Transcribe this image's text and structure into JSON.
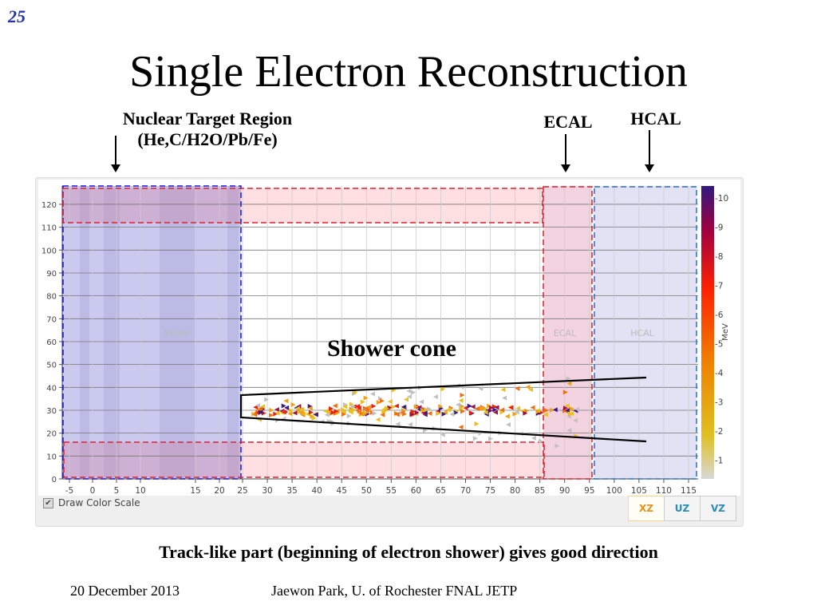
{
  "slide": {
    "page_number": "25",
    "title": "Single Electron Reconstruction",
    "labels": {
      "nuclear_target_line1": "Nuclear Target Region",
      "nuclear_target_line2": "(He,C/H2O/Pb/Fe)",
      "ecal": "ECAL",
      "hcal": "HCAL",
      "shower_cone": "Shower cone"
    },
    "caption": "Track-like part (beginning of electron shower) gives good direction",
    "footer_date": "20 December 2013",
    "footer_author": "Jaewon Park, U. of Rochester  FNAL JETP"
  },
  "display": {
    "x_ticks": [
      "-5",
      "0",
      "5",
      "10",
      "15",
      "20",
      "25",
      "30",
      "35",
      "40",
      "45",
      "50",
      "55",
      "60",
      "65",
      "70",
      "75",
      "80",
      "85",
      "90",
      "95",
      "100",
      "105",
      "110",
      "115"
    ],
    "y_ticks": [
      "0",
      "10",
      "20",
      "30",
      "40",
      "50",
      "60",
      "70",
      "80",
      "90",
      "100",
      "110",
      "120"
    ],
    "region_labels": {
      "water": "Water",
      "ecal": "ECAL",
      "hcal": "HCAL"
    },
    "colorscale": {
      "unit": "MeV",
      "ticks": [
        "1",
        "2",
        "3",
        "4",
        "5",
        "6",
        "7",
        "8",
        "9",
        "10"
      ]
    },
    "draw_color_scale_label": "Draw Color Scale",
    "draw_color_scale_checked": true,
    "views": [
      {
        "label": "XZ",
        "color": "#e8901a",
        "active": true
      },
      {
        "label": "UZ",
        "color": "#2a8ab8",
        "active": false
      },
      {
        "label": "VZ",
        "color": "#2a8ab8",
        "active": false
      }
    ]
  }
}
